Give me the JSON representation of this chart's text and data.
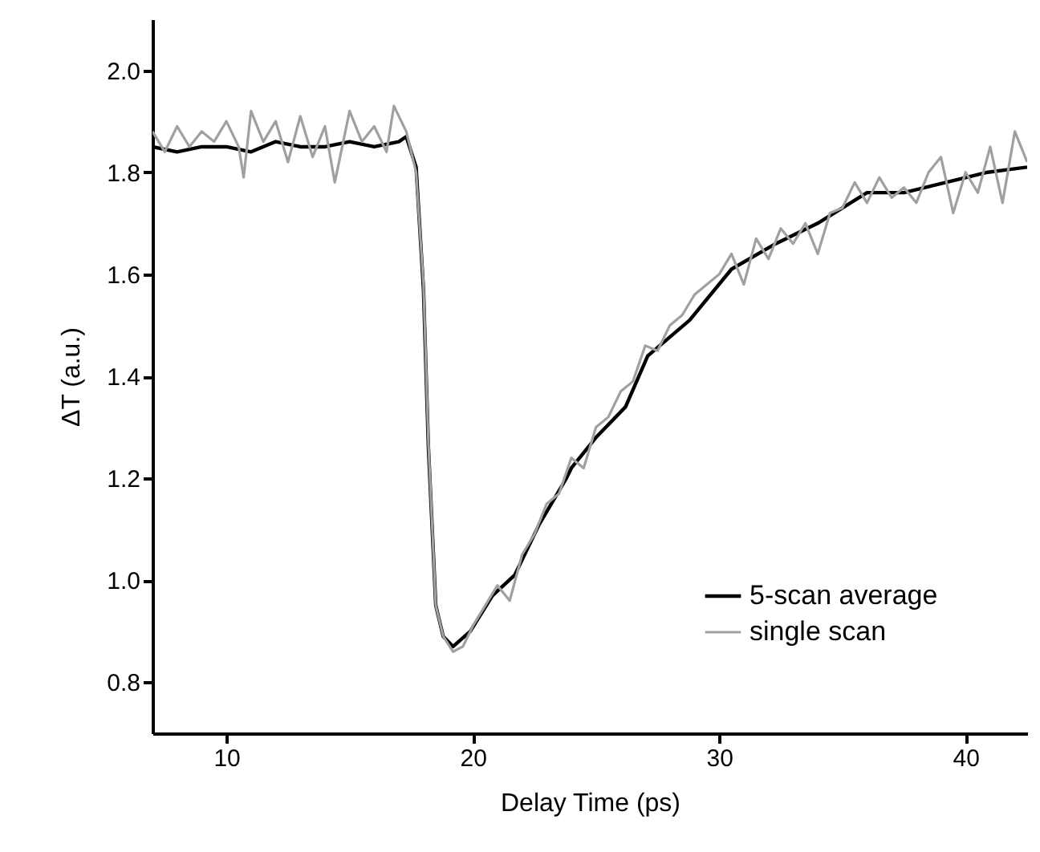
{
  "chart_data": {
    "type": "line",
    "xlabel": "Delay Time (ps)",
    "ylabel": "ΔT (a.u.)",
    "xlim": [
      7,
      42.5
    ],
    "xticks": [
      10,
      20,
      30,
      40
    ],
    "ylim": [
      0.7,
      2.1
    ],
    "yticks": [
      0.8,
      {
        "value": 1,
        "label": "1.0"
      },
      1.2,
      1.4,
      1.6,
      1.8,
      {
        "value": 2,
        "label": "2.0"
      }
    ],
    "grid": false,
    "legend": "bottom right",
    "series": [
      {
        "name": "5-scan average",
        "color": "#000000",
        "x": [
          7,
          8,
          9,
          10,
          11,
          12,
          13,
          14,
          15,
          16,
          17,
          17.3,
          17.7,
          18.0,
          18.2,
          18.5,
          18.8,
          19.2,
          19.9,
          20.8,
          21.7,
          22.7,
          23.8,
          24.0,
          25,
          26.2,
          27.1,
          28.8,
          30.5,
          32.3,
          34,
          36,
          37.5,
          39.2,
          40.9,
          42.5
        ],
        "values": [
          1.85,
          1.84,
          1.85,
          1.85,
          1.84,
          1.86,
          1.85,
          1.85,
          1.86,
          1.85,
          1.86,
          1.87,
          1.81,
          1.57,
          1.26,
          0.95,
          0.89,
          0.87,
          0.9,
          0.97,
          1.01,
          1.11,
          1.2,
          1.22,
          1.28,
          1.34,
          1.44,
          1.51,
          1.61,
          1.66,
          1.7,
          1.76,
          1.76,
          1.78,
          1.8,
          1.81
        ]
      },
      {
        "name": "single scan",
        "color": "#a0a0a0",
        "x": [
          7,
          7.5,
          8,
          8.5,
          9,
          9.5,
          10,
          10.5,
          10.7,
          11,
          11.5,
          12,
          12.5,
          13,
          13.5,
          14,
          14.4,
          15,
          15.5,
          16,
          16.5,
          16.8,
          17.3,
          17.7,
          18.0,
          18.2,
          18.5,
          18.8,
          19.2,
          19.6,
          20,
          20.5,
          21,
          21.5,
          22,
          22.5,
          23,
          23.5,
          24,
          24.5,
          25,
          25.5,
          26,
          26.5,
          27,
          27.5,
          28,
          28.5,
          29,
          29.5,
          30,
          30.5,
          31,
          31.5,
          32,
          32.5,
          33,
          33.5,
          34,
          34.5,
          35,
          35.5,
          36,
          36.5,
          37,
          37.5,
          38,
          38.5,
          39,
          39.5,
          40,
          40.5,
          41,
          41.5,
          42,
          42.5
        ],
        "values": [
          1.88,
          1.84,
          1.89,
          1.85,
          1.88,
          1.86,
          1.9,
          1.85,
          1.79,
          1.92,
          1.86,
          1.9,
          1.82,
          1.91,
          1.83,
          1.89,
          1.78,
          1.92,
          1.86,
          1.89,
          1.84,
          1.93,
          1.88,
          1.8,
          1.58,
          1.27,
          0.95,
          0.89,
          0.86,
          0.87,
          0.91,
          0.95,
          0.99,
          0.96,
          1.05,
          1.09,
          1.15,
          1.17,
          1.24,
          1.22,
          1.3,
          1.32,
          1.37,
          1.39,
          1.46,
          1.45,
          1.5,
          1.52,
          1.56,
          1.58,
          1.6,
          1.64,
          1.58,
          1.67,
          1.63,
          1.69,
          1.66,
          1.7,
          1.64,
          1.72,
          1.73,
          1.78,
          1.74,
          1.79,
          1.75,
          1.77,
          1.74,
          1.8,
          1.83,
          1.72,
          1.8,
          1.76,
          1.85,
          1.74,
          1.88,
          1.82
        ]
      }
    ]
  }
}
